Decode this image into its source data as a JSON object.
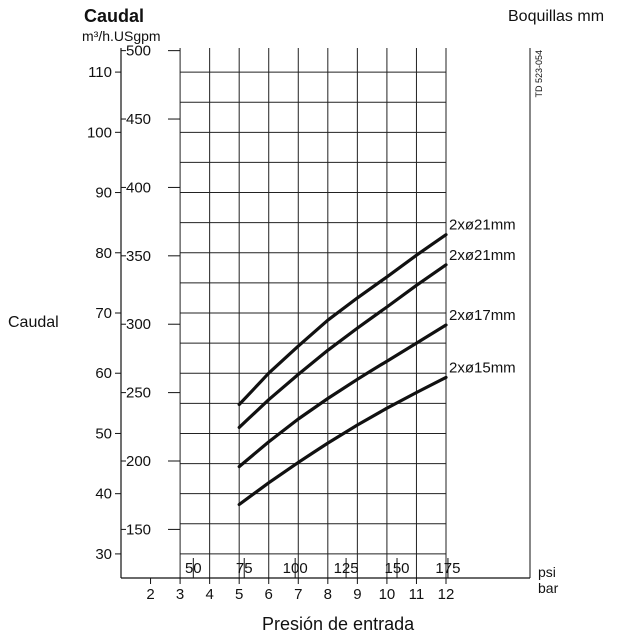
{
  "chart_data": {
    "type": "line",
    "title": "Caudal",
    "units_label": "m³/h.USgpm",
    "corner_label": "Boquillas mm",
    "ylabel": "Caudal",
    "xlabel": "Presión de entrada",
    "doc_code": "TD 523-054",
    "unit_psi": "psi",
    "unit_bar": "bar",
    "ylim": [
      26,
      114
    ],
    "xlim": [
      1,
      12
    ],
    "y_ticks_m3h": [
      "110",
      "100",
      "90",
      "80",
      "70",
      "60",
      "50",
      "40",
      "30"
    ],
    "y_ticks_usgpm": [
      "500",
      "450",
      "400",
      "350",
      "300",
      "250",
      "200",
      "150"
    ],
    "x_ticks_bar": [
      "2",
      "3",
      "4",
      "5",
      "6",
      "7",
      "8",
      "9",
      "10",
      "11",
      "12"
    ],
    "x_ticks_psi": [
      "50",
      "75",
      "100",
      "125",
      "150",
      "175"
    ],
    "grid": true,
    "x_axis": "bar",
    "series": [
      {
        "name": "2xø21mm",
        "x": [
          5,
          6,
          7,
          8,
          9,
          10,
          11,
          12
        ],
        "y": [
          54.8,
          60.0,
          64.5,
          68.8,
          72.5,
          76.0,
          79.6,
          83.0
        ]
      },
      {
        "name": "2xø21mm",
        "x": [
          5,
          6,
          7,
          8,
          9,
          10,
          11,
          12
        ],
        "y": [
          51.0,
          55.6,
          59.8,
          63.8,
          67.5,
          71.0,
          74.6,
          78.0
        ]
      },
      {
        "name": "2xø17mm",
        "x": [
          5,
          6,
          7,
          8,
          9,
          10,
          11,
          12
        ],
        "y": [
          44.5,
          48.6,
          52.4,
          55.8,
          59.0,
          62.0,
          65.0,
          68.0
        ]
      },
      {
        "name": "2xø15mm",
        "x": [
          5,
          6,
          7,
          8,
          9,
          10,
          11,
          12
        ],
        "y": [
          38.2,
          41.8,
          45.2,
          48.4,
          51.4,
          54.2,
          56.8,
          59.3
        ]
      }
    ]
  }
}
